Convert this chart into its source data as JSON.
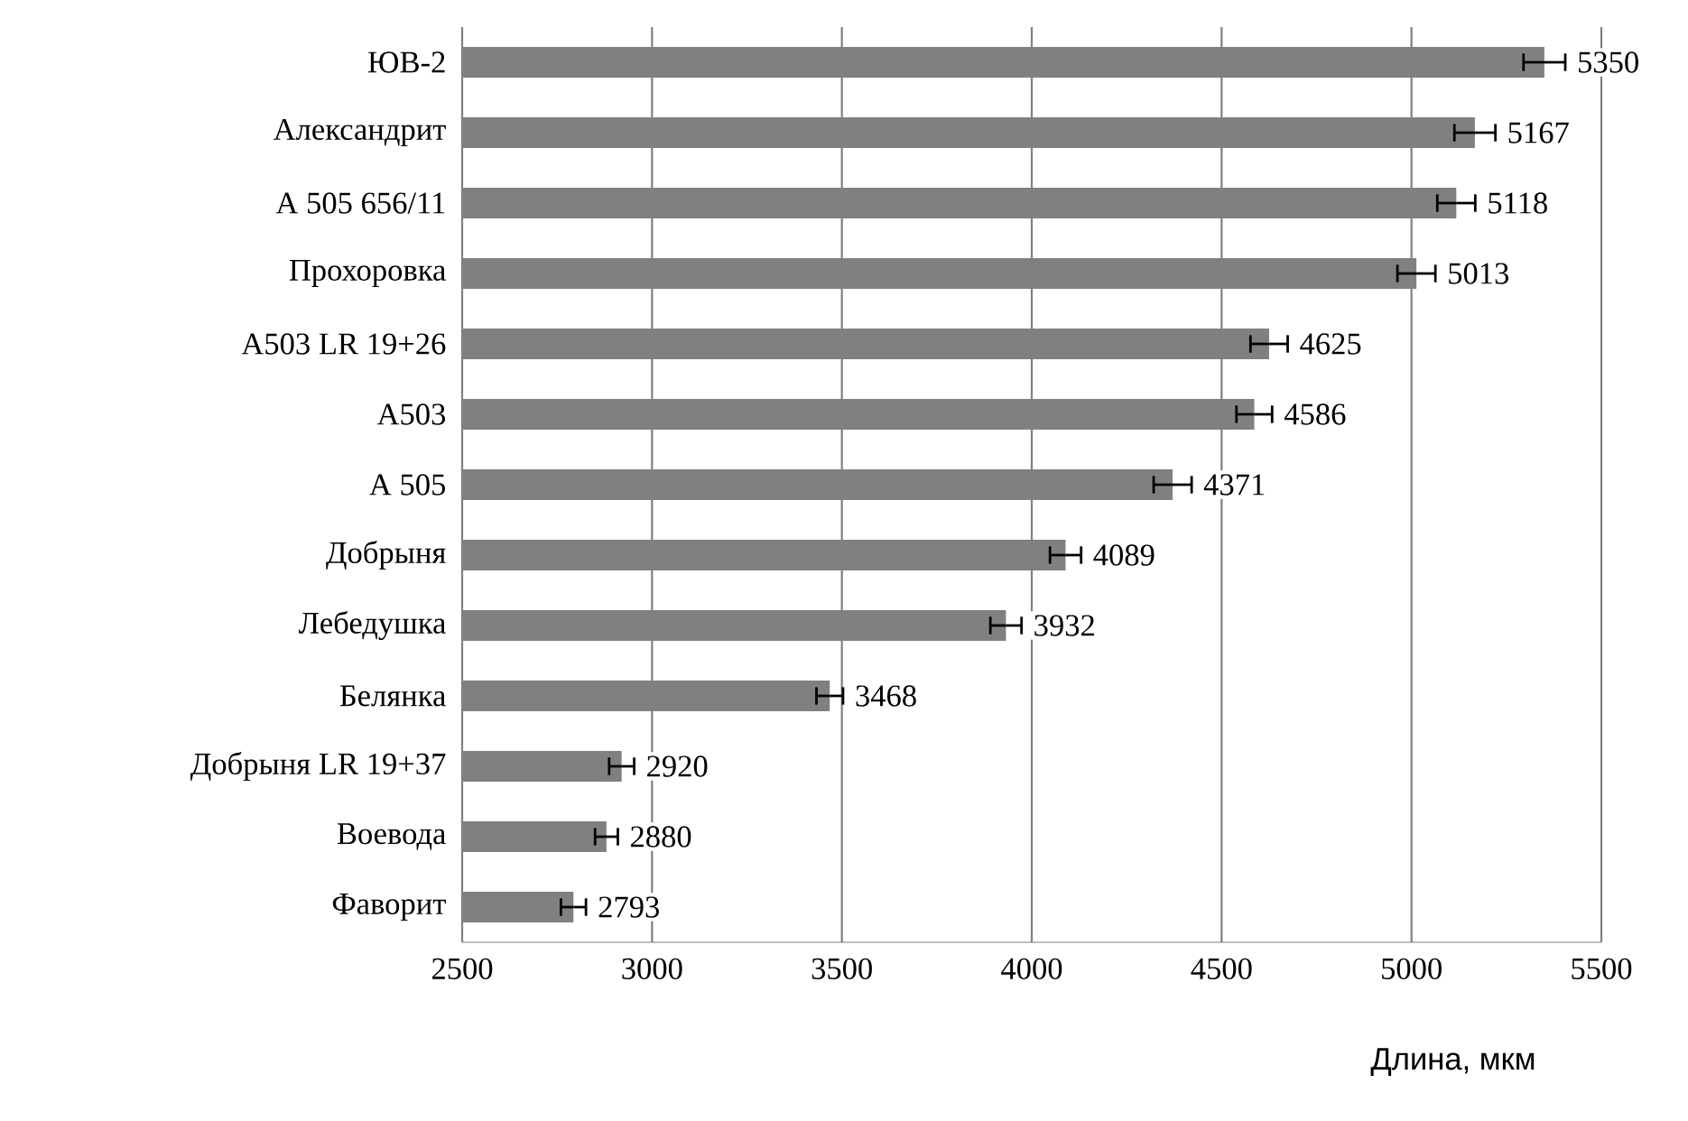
{
  "chart_data": {
    "type": "bar",
    "orientation": "horizontal",
    "xlabel": "Длина, мкм",
    "categories": [
      "ЮВ-2",
      "Александрит",
      "А 505 656/11",
      "Прохоровка",
      "А503 LR 19+26",
      "А503",
      "А 505",
      "Добрыня",
      "Лебедушка",
      "Белянка",
      "Добрыня LR 19+37",
      "Воевода",
      "Фаворит"
    ],
    "values": [
      5350,
      5167,
      5118,
      5013,
      4625,
      4586,
      4371,
      4089,
      3932,
      3468,
      2920,
      2880,
      2793
    ],
    "errors": [
      55,
      54,
      50,
      50,
      49,
      47,
      50,
      41,
      41,
      35,
      33,
      30,
      33
    ],
    "color": "#808080",
    "data_labels": true,
    "grid": "x",
    "xlim": [
      2500,
      5500
    ],
    "xticks": [
      2500,
      3000,
      3500,
      4000,
      4500,
      5000,
      5500
    ]
  }
}
